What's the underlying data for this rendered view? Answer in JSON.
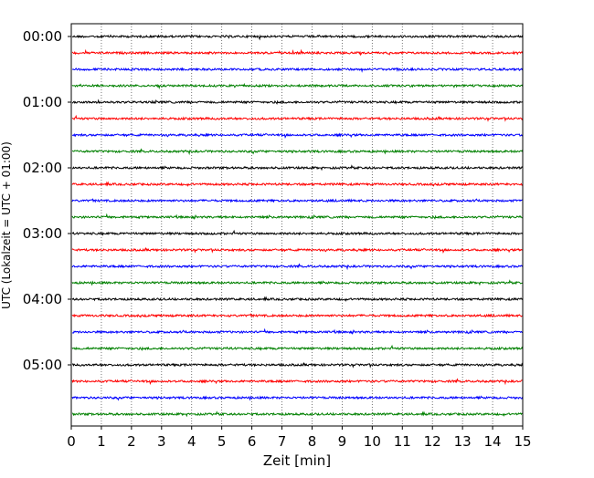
{
  "chart_data": {
    "type": "line",
    "subtype": "seismogram-dayplot",
    "title": "",
    "xlabel": "Zeit  [min]",
    "ylabel": "UTC (Lokalzeit = UTC + 01:00)",
    "xlim": [
      0,
      15
    ],
    "x_ticks": [
      "0",
      "1",
      "2",
      "3",
      "4",
      "5",
      "6",
      "7",
      "8",
      "9",
      "10",
      "11",
      "12",
      "13",
      "14",
      "15"
    ],
    "y_tick_labels": [
      "00:00",
      "01:00",
      "02:00",
      "03:00",
      "04:00",
      "05:00"
    ],
    "interval_minutes": 15,
    "rows": 24,
    "row_start_times": [
      "00:00",
      "00:15",
      "00:30",
      "00:45",
      "01:00",
      "01:15",
      "01:30",
      "01:45",
      "02:00",
      "02:15",
      "02:30",
      "02:45",
      "03:00",
      "03:15",
      "03:30",
      "03:45",
      "04:00",
      "04:15",
      "04:30",
      "04:45",
      "05:00",
      "05:15",
      "05:30",
      "05:45"
    ],
    "trace_colors": [
      "#000000",
      "#ff0000",
      "#0000ff",
      "#008000"
    ],
    "grid": "vertical dotted",
    "legend": "none"
  }
}
